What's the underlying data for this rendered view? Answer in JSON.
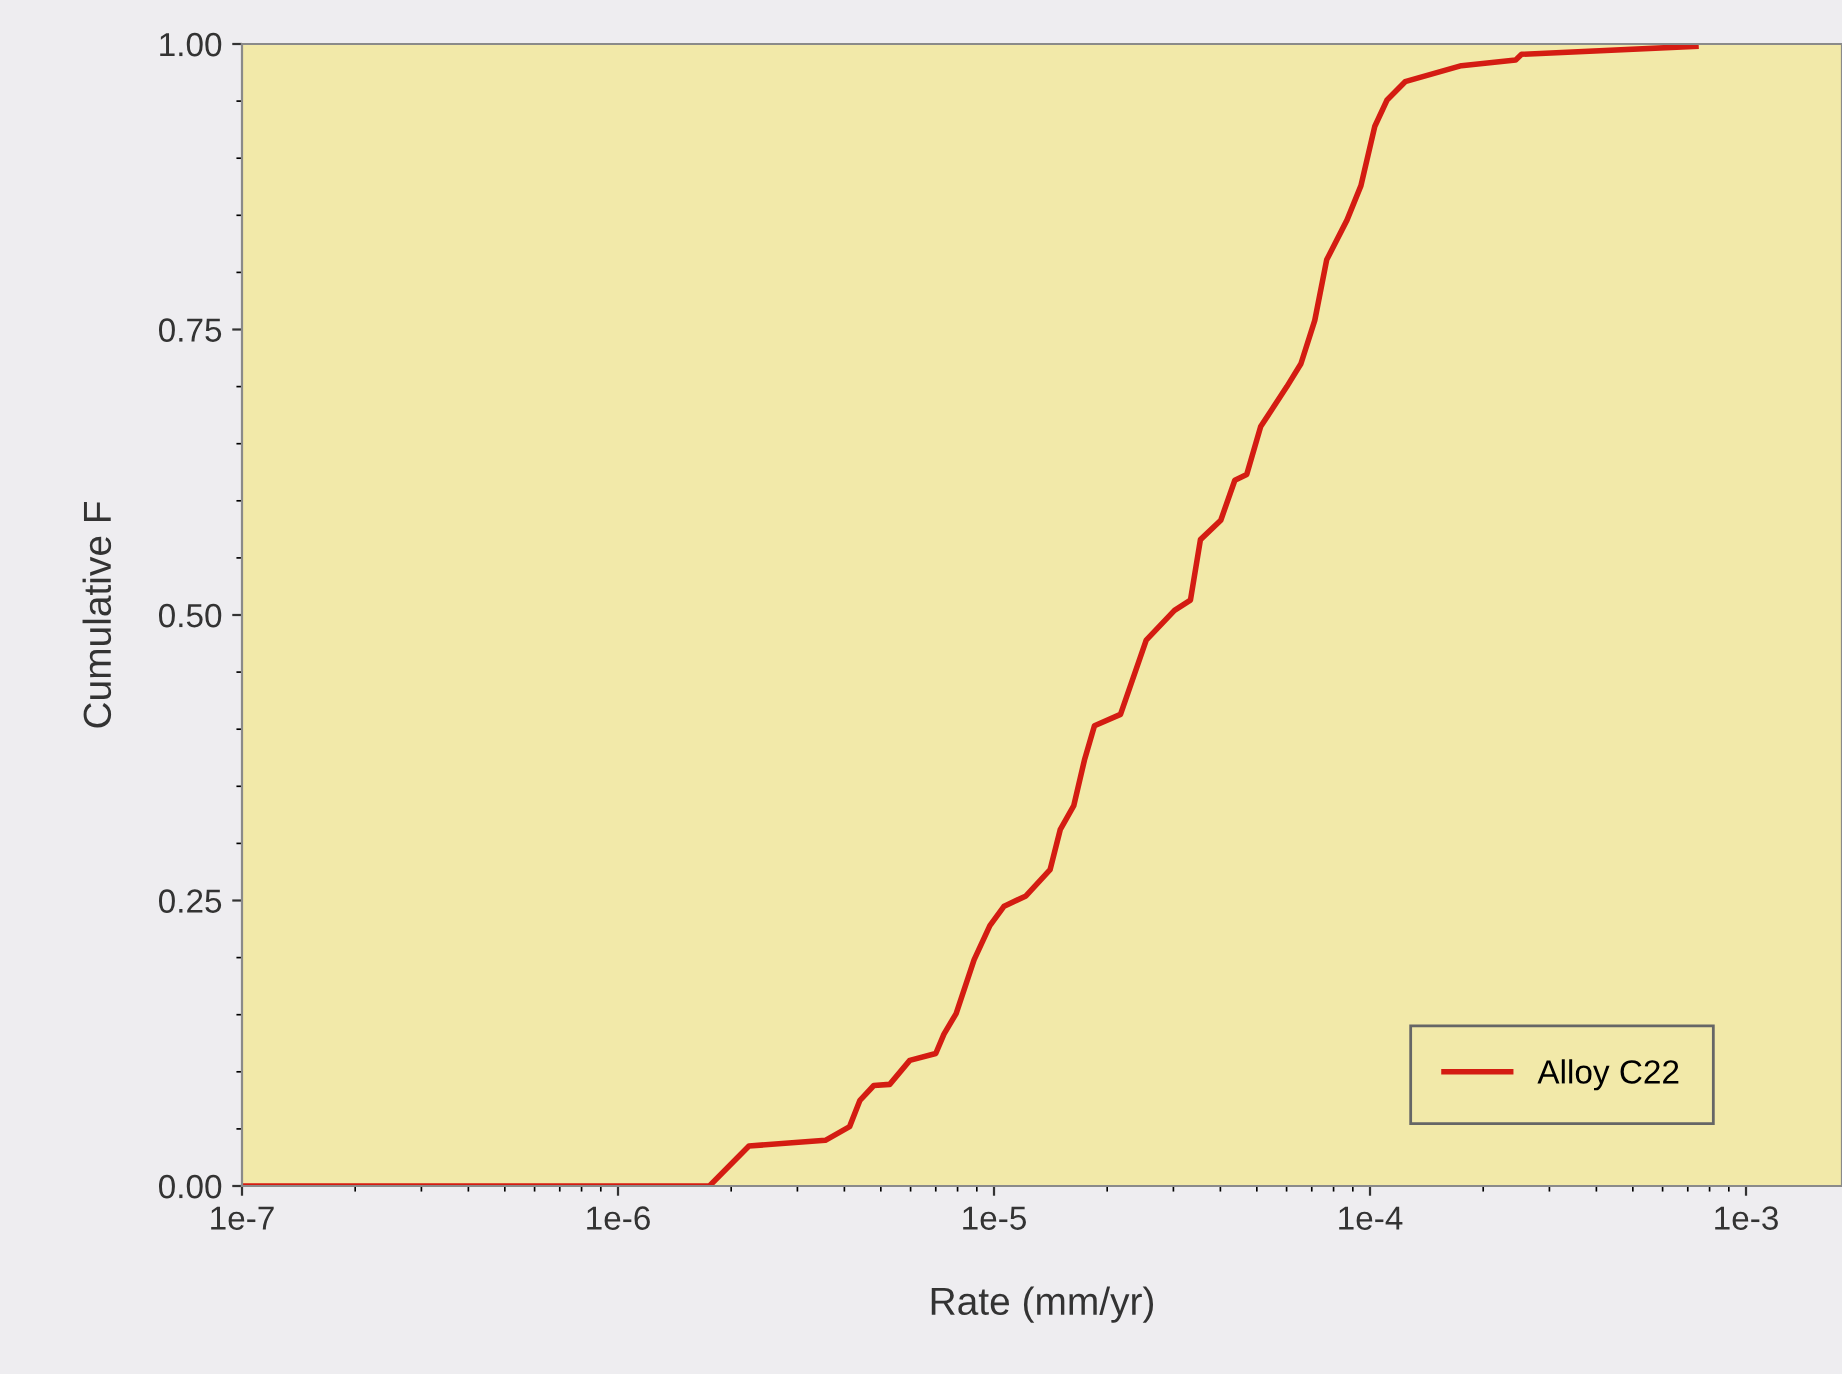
{
  "chart_data": {
    "type": "line",
    "xlabel": "Rate (mm/yr)",
    "ylabel": "Cumulative F",
    "log": "x",
    "grid": false,
    "legend": "bottom right",
    "marker": "none",
    "line_style": "solid",
    "xlim": [
      1e-07,
      0.0018
    ],
    "ylim": [
      0,
      1
    ],
    "xticks": [
      {
        "value": 1e-07,
        "label": "1e-7"
      },
      {
        "value": 1e-06,
        "label": "1e-6"
      },
      {
        "value": 1e-05,
        "label": "1e-5"
      },
      {
        "value": 0.0001,
        "label": "1e-4"
      },
      {
        "value": 0.001,
        "label": "1e-3"
      }
    ],
    "yticks": [
      {
        "value": 0,
        "label": "0.00"
      },
      {
        "value": 0.25,
        "label": "0.25"
      },
      {
        "value": 0.5,
        "label": "0.50"
      },
      {
        "value": 0.75,
        "label": "0.75"
      },
      {
        "value": 1,
        "label": "1.00"
      }
    ],
    "series": [
      {
        "name": "Alloy C22",
        "color": "#d41c12",
        "x": [
          1e-07,
          1.75e-06,
          2.23e-06,
          3.56e-06,
          4.13e-06,
          4.4e-06,
          4.79e-06,
          5.28e-06,
          5.97e-06,
          7e-06,
          7.36e-06,
          7.93e-06,
          8.85e-06,
          9.75e-06,
          1.064e-05,
          1.216e-05,
          1.41e-05,
          1.5e-05,
          1.63e-05,
          1.74e-05,
          1.85e-05,
          2.17e-05,
          2.54e-05,
          3.02e-05,
          3.33e-05,
          3.54e-05,
          4.01e-05,
          4.37e-05,
          4.7e-05,
          5.12e-05,
          6.01e-05,
          6.55e-05,
          7.13e-05,
          7.67e-05,
          8.69e-05,
          9.46e-05,
          0.000103,
          0.000111,
          0.000124,
          0.000175,
          0.000244,
          0.000253,
          0.000736
        ],
        "values": [
          0,
          0,
          0.035,
          0.04,
          0.052,
          0.075,
          0.088,
          0.089,
          0.11,
          0.116,
          0.133,
          0.151,
          0.198,
          0.228,
          0.245,
          0.254,
          0.277,
          0.312,
          0.333,
          0.373,
          0.403,
          0.413,
          0.478,
          0.504,
          0.513,
          0.566,
          0.583,
          0.618,
          0.623,
          0.665,
          0.7,
          0.72,
          0.758,
          0.811,
          0.846,
          0.876,
          0.928,
          0.951,
          0.967,
          0.981,
          0.986,
          0.991,
          0.998
        ]
      }
    ]
  }
}
